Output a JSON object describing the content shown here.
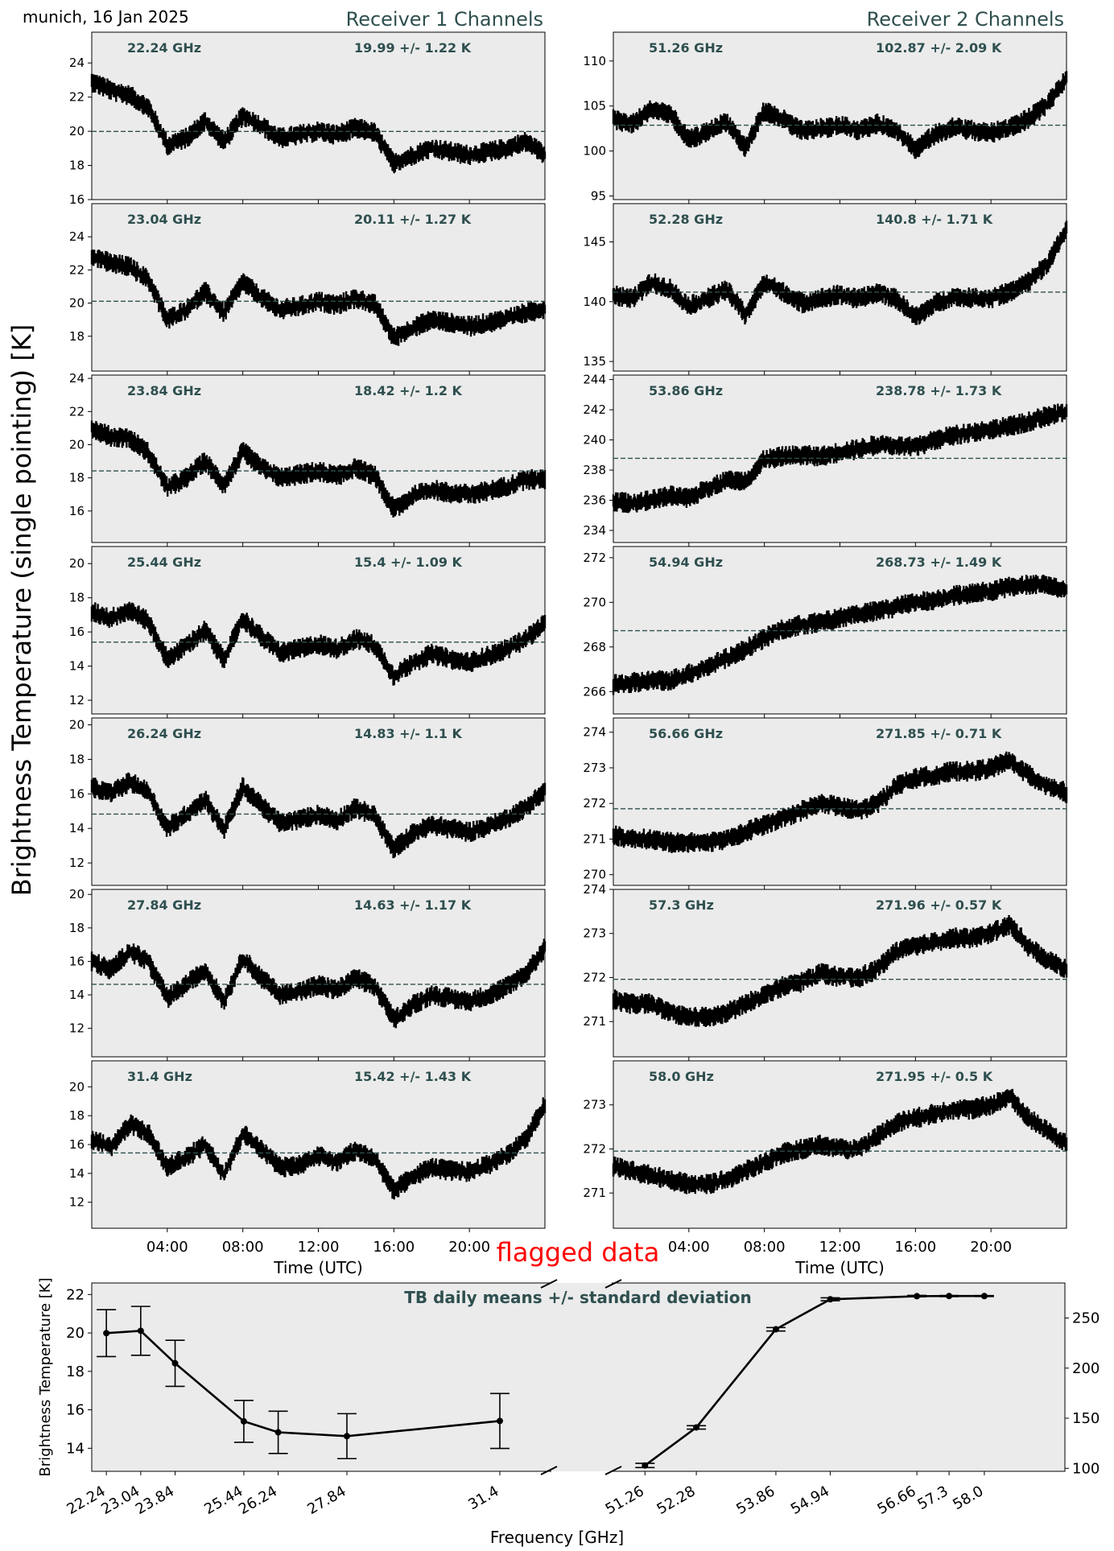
{
  "header": {
    "site_date": "munich, 16 Jan 2025",
    "receiver1_title": "Receiver 1 Channels",
    "receiver2_title": "Receiver 2 Channels",
    "y_label": "Brightness Temperature (single pointing) [K]",
    "time_xlabel": "Time (UTC)",
    "time_ticks": [
      "04:00",
      "08:00",
      "12:00",
      "16:00",
      "20:00"
    ]
  },
  "colors": {
    "panel_bg": "#ebebeb",
    "trace": "#000000",
    "label_text": "#2f4f4f",
    "mean_line": "#2f4f4f",
    "flag_text": "#ff0000"
  },
  "chart_data": [
    {
      "type": "line",
      "title": "Receiver 1 Channels",
      "xlabel": "Time (UTC)",
      "x_ticks": [
        "04:00",
        "08:00",
        "12:00",
        "16:00",
        "20:00"
      ],
      "x_range_hours": [
        0,
        24
      ],
      "panels": [
        {
          "freq": "22.24 GHz",
          "stats": "19.99 +/- 1.22 K",
          "mean": 19.99,
          "ylim": [
            16,
            25.8
          ],
          "yticks": [
            16,
            18,
            20,
            22,
            24
          ],
          "series_profile": [
            22.9,
            22.4,
            22.1,
            21.4,
            19.2,
            19.6,
            20.6,
            19.4,
            20.9,
            20.3,
            19.6,
            19.8,
            20.0,
            19.8,
            20.2,
            19.9,
            18.1,
            18.6,
            19.0,
            18.8,
            18.6,
            18.8,
            19.0,
            19.4,
            18.6
          ]
        },
        {
          "freq": "23.04 GHz",
          "stats": "20.11 +/- 1.27 K",
          "mean": 20.11,
          "ylim": [
            15.9,
            26
          ],
          "yticks": [
            18,
            20,
            22,
            24
          ],
          "series_profile": [
            22.9,
            22.4,
            22.2,
            21.4,
            19.0,
            19.6,
            20.7,
            19.4,
            21.3,
            20.3,
            19.6,
            19.8,
            20.1,
            19.9,
            20.3,
            19.9,
            17.9,
            18.5,
            19.0,
            18.8,
            18.6,
            18.8,
            19.1,
            19.4,
            19.7
          ]
        },
        {
          "freq": "23.84 GHz",
          "stats": "18.42 +/- 1.2 K",
          "mean": 18.42,
          "ylim": [
            14.1,
            24.2
          ],
          "yticks": [
            16,
            18,
            20,
            22,
            24
          ],
          "series_profile": [
            21.0,
            20.5,
            20.4,
            19.5,
            17.4,
            18.0,
            19.0,
            17.6,
            19.6,
            18.6,
            18.0,
            18.2,
            18.4,
            18.1,
            18.6,
            18.1,
            16.1,
            16.9,
            17.3,
            17.1,
            17.0,
            17.2,
            17.5,
            17.9,
            17.9
          ]
        },
        {
          "freq": "25.44 GHz",
          "stats": "15.4 +/- 1.09 K",
          "mean": 15.4,
          "ylim": [
            11.2,
            21
          ],
          "yticks": [
            12,
            14,
            16,
            18,
            20
          ],
          "series_profile": [
            17.2,
            16.8,
            17.3,
            16.6,
            14.4,
            15.2,
            16.1,
            14.4,
            16.8,
            15.7,
            14.8,
            15.0,
            15.3,
            15.0,
            15.6,
            15.2,
            13.4,
            14.2,
            14.7,
            14.4,
            14.2,
            14.6,
            15.0,
            15.6,
            16.5
          ]
        },
        {
          "freq": "26.24 GHz",
          "stats": "14.83 +/- 1.1 K",
          "mean": 14.83,
          "ylim": [
            10.7,
            20.4
          ],
          "yticks": [
            12,
            14,
            16,
            18,
            20
          ],
          "series_profile": [
            16.4,
            16.0,
            16.7,
            16.1,
            14.0,
            14.8,
            15.7,
            13.9,
            16.4,
            15.3,
            14.3,
            14.5,
            14.8,
            14.5,
            15.2,
            14.7,
            12.8,
            13.7,
            14.2,
            14.0,
            13.8,
            14.1,
            14.6,
            15.2,
            16.2
          ]
        },
        {
          "freq": "27.84 GHz",
          "stats": "14.63 +/- 1.17 K",
          "mean": 14.63,
          "ylim": [
            10.3,
            20.3
          ],
          "yticks": [
            12,
            14,
            16,
            18,
            20
          ],
          "series_profile": [
            16.0,
            15.5,
            16.6,
            16.0,
            13.8,
            14.6,
            15.5,
            13.6,
            16.2,
            15.0,
            14.0,
            14.2,
            14.6,
            14.3,
            15.0,
            14.5,
            12.5,
            13.4,
            14.0,
            13.8,
            13.6,
            14.0,
            14.5,
            15.3,
            16.8
          ]
        },
        {
          "freq": "31.4 GHz",
          "stats": "15.42 +/- 1.43 K",
          "mean": 15.42,
          "ylim": [
            10.2,
            21.8
          ],
          "yticks": [
            12,
            14,
            16,
            18,
            20
          ],
          "series_profile": [
            16.4,
            15.8,
            17.4,
            16.8,
            14.4,
            15.1,
            16.0,
            13.9,
            16.8,
            15.6,
            14.4,
            14.6,
            15.2,
            14.8,
            15.6,
            15.0,
            12.8,
            13.8,
            14.4,
            14.2,
            14.1,
            14.6,
            15.3,
            16.4,
            18.8
          ]
        }
      ]
    },
    {
      "type": "line",
      "title": "Receiver 2 Channels",
      "xlabel": "Time (UTC)",
      "x_ticks": [
        "04:00",
        "08:00",
        "12:00",
        "16:00",
        "20:00"
      ],
      "x_range_hours": [
        0,
        24
      ],
      "panels": [
        {
          "freq": "51.26 GHz",
          "stats": "102.87 +/- 2.09 K",
          "mean": 102.87,
          "ylim": [
            94.6,
            113.2
          ],
          "yticks": [
            95,
            100,
            105,
            110
          ],
          "series_profile": [
            103.5,
            103.0,
            104.6,
            104.2,
            101.2,
            102.1,
            103.3,
            100.4,
            104.5,
            103.5,
            102.2,
            102.5,
            102.8,
            102.3,
            103.0,
            102.4,
            100.2,
            101.8,
            102.7,
            102.3,
            102.0,
            102.6,
            103.6,
            105.2,
            108.2
          ]
        },
        {
          "freq": "52.28 GHz",
          "stats": "140.8 +/- 1.71 K",
          "mean": 140.8,
          "ylim": [
            134.2,
            148.2
          ],
          "yticks": [
            135,
            140,
            145
          ],
          "series_profile": [
            140.6,
            140.2,
            141.6,
            141.1,
            139.6,
            140.3,
            141.0,
            138.9,
            141.6,
            140.8,
            139.9,
            140.3,
            140.6,
            140.2,
            140.8,
            140.2,
            138.7,
            139.8,
            140.4,
            140.3,
            140.3,
            140.8,
            141.7,
            143.2,
            146.0
          ]
        },
        {
          "freq": "53.86 GHz",
          "stats": "238.78 +/- 1.73 K",
          "mean": 238.78,
          "ylim": [
            233.2,
            244.3
          ],
          "yticks": [
            234,
            236,
            238,
            240,
            242,
            244
          ],
          "series_profile": [
            235.9,
            235.8,
            236.0,
            236.3,
            236.1,
            236.8,
            237.3,
            237.3,
            238.7,
            238.9,
            239.0,
            238.9,
            239.2,
            239.4,
            239.7,
            239.6,
            239.5,
            240.0,
            240.3,
            240.5,
            240.7,
            240.9,
            241.2,
            241.6,
            241.8
          ]
        },
        {
          "freq": "54.94 GHz",
          "stats": "268.73 +/- 1.49 K",
          "mean": 268.73,
          "ylim": [
            265.0,
            272.5
          ],
          "yticks": [
            266,
            268,
            270,
            272
          ],
          "series_profile": [
            266.3,
            266.4,
            266.5,
            266.5,
            266.8,
            267.1,
            267.5,
            267.9,
            268.4,
            268.8,
            269.0,
            269.1,
            269.3,
            269.5,
            269.6,
            269.8,
            270.0,
            270.1,
            270.3,
            270.4,
            270.5,
            270.7,
            270.8,
            270.8,
            270.5
          ]
        },
        {
          "freq": "56.66 GHz",
          "stats": "271.85 +/- 0.71 K",
          "mean": 271.85,
          "ylim": [
            269.7,
            274.4
          ],
          "yticks": [
            270,
            271,
            272,
            273,
            274
          ],
          "series_profile": [
            271.1,
            271.0,
            271.0,
            270.9,
            270.9,
            270.9,
            271.0,
            271.2,
            271.4,
            271.6,
            271.8,
            272.0,
            271.9,
            271.8,
            272.0,
            272.5,
            272.7,
            272.8,
            272.9,
            272.9,
            273.0,
            273.2,
            272.8,
            272.5,
            272.3
          ]
        },
        {
          "freq": "57.3 GHz",
          "stats": "271.96 +/- 0.57 K",
          "mean": 271.96,
          "ylim": [
            270.2,
            274.0
          ],
          "yticks": [
            271,
            272,
            273,
            274
          ],
          "series_profile": [
            271.5,
            271.4,
            271.4,
            271.2,
            271.1,
            271.1,
            271.2,
            271.4,
            271.6,
            271.8,
            271.9,
            272.1,
            272.0,
            272.0,
            272.2,
            272.6,
            272.7,
            272.8,
            272.9,
            272.9,
            273.0,
            273.2,
            272.7,
            272.4,
            272.2
          ]
        },
        {
          "freq": "58.0 GHz",
          "stats": "271.95 +/- 0.5 K",
          "mean": 271.95,
          "ylim": [
            270.2,
            274.0
          ],
          "yticks": [
            271,
            272,
            273
          ],
          "series_profile": [
            271.6,
            271.5,
            271.4,
            271.3,
            271.2,
            271.2,
            271.3,
            271.5,
            271.7,
            271.9,
            272.0,
            272.1,
            272.0,
            272.0,
            272.3,
            272.6,
            272.7,
            272.8,
            272.9,
            272.9,
            273.0,
            273.2,
            272.7,
            272.4,
            272.1
          ]
        }
      ]
    },
    {
      "type": "line",
      "title": "TB daily means +/- standard deviation",
      "xlabel": "Frequency [GHz]",
      "ylabel": "Brightness Temperature [K]",
      "flag_label": "flagged data",
      "left": {
        "ylim": [
          12.8,
          22.6
        ],
        "yticks": [
          14,
          16,
          18,
          20,
          22
        ],
        "x_range": [
          21.9,
          32.6
        ],
        "points": [
          {
            "x": 22.24,
            "label": "22.24",
            "mean": 19.99,
            "std": 1.22
          },
          {
            "x": 23.04,
            "label": "23.04",
            "mean": 20.11,
            "std": 1.27
          },
          {
            "x": 23.84,
            "label": "23.84",
            "mean": 18.42,
            "std": 1.2
          },
          {
            "x": 25.44,
            "label": "25.44",
            "mean": 15.4,
            "std": 1.09
          },
          {
            "x": 26.24,
            "label": "26.24",
            "mean": 14.83,
            "std": 1.1
          },
          {
            "x": 27.84,
            "label": "27.84",
            "mean": 14.63,
            "std": 1.17
          },
          {
            "x": 31.4,
            "label": "31.4",
            "mean": 15.42,
            "std": 1.43
          }
        ]
      },
      "right": {
        "ylim": [
          97,
          285
        ],
        "yticks": [
          100,
          150,
          200,
          250
        ],
        "x_range": [
          50.6,
          59.6
        ],
        "points": [
          {
            "x": 51.26,
            "label": "51.26",
            "mean": 102.87,
            "std": 2.09
          },
          {
            "x": 52.28,
            "label": "52.28",
            "mean": 140.8,
            "std": 1.71
          },
          {
            "x": 53.86,
            "label": "53.86",
            "mean": 238.78,
            "std": 1.73
          },
          {
            "x": 54.94,
            "label": "54.94",
            "mean": 268.73,
            "std": 1.49
          },
          {
            "x": 56.66,
            "label": "56.66",
            "mean": 271.85,
            "std": 0.71
          },
          {
            "x": 57.3,
            "label": "57.3",
            "mean": 271.96,
            "std": 0.57
          },
          {
            "x": 58.0,
            "label": "58.0",
            "mean": 271.95,
            "std": 0.5
          }
        ]
      }
    }
  ]
}
